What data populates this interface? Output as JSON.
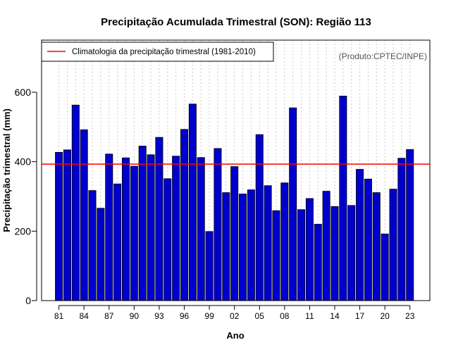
{
  "chart_data": {
    "type": "bar",
    "title": "Precipitação Acumulada Trimestral (SON): Região 113",
    "xlabel": "Ano",
    "ylabel": "Precipitação trimestral (mm)",
    "credit": "(Produto:CPTEC/INPE)",
    "legend": {
      "label": "Climatologia da precipitação trimestral (1981-2010)",
      "position": "top-left"
    },
    "climatology": 393,
    "ylim": [
      0,
      750
    ],
    "yticks": [
      0,
      200,
      400,
      600
    ],
    "colors": {
      "bar": "#0000CD",
      "bar_edge": "#000000",
      "climatology": "#FF0000",
      "grid": "#cccccc"
    },
    "categories": [
      "81",
      "82",
      "83",
      "84",
      "85",
      "86",
      "87",
      "88",
      "89",
      "90",
      "91",
      "92",
      "93",
      "94",
      "95",
      "96",
      "97",
      "98",
      "99",
      "00",
      "01",
      "02",
      "03",
      "04",
      "05",
      "06",
      "07",
      "08",
      "09",
      "10",
      "11",
      "12",
      "13",
      "14",
      "15",
      "16",
      "17",
      "18",
      "19",
      "20",
      "21",
      "22",
      "23"
    ],
    "xtick_labels": [
      "81",
      "84",
      "87",
      "90",
      "93",
      "96",
      "99",
      "02",
      "05",
      "08",
      "11",
      "14",
      "17",
      "20",
      "23"
    ],
    "values": [
      427,
      434,
      563,
      492,
      317,
      266,
      422,
      336,
      411,
      387,
      445,
      420,
      470,
      351,
      416,
      493,
      566,
      412,
      199,
      438,
      311,
      386,
      307,
      319,
      478,
      331,
      259,
      339,
      555,
      262,
      294,
      220,
      315,
      271,
      589,
      274,
      378,
      350,
      311,
      192,
      321,
      410,
      435
    ]
  }
}
